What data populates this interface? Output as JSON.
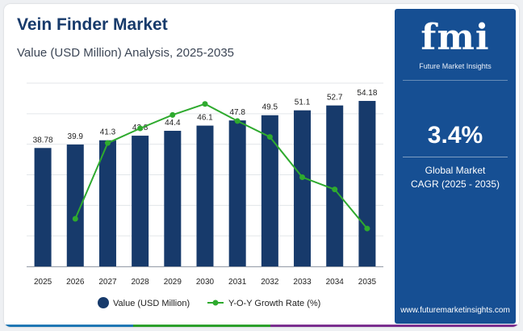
{
  "header": {
    "title": "Vein Finder Market",
    "subtitle": "Value (USD Million) Analysis, 2025-2035"
  },
  "sidebar": {
    "brand": "fmi",
    "brand_sub": "Future Market Insights",
    "cagr_value": "3.4%",
    "cagr_label_line1": "Global Market",
    "cagr_label_line2": "CAGR (2025 - 2035)",
    "website": "www.futuremarketinsights.com"
  },
  "colors": {
    "bar": "#173a6b",
    "line": "#2eaa2e",
    "sidebar": "#164f93",
    "strip": [
      "#1f77b4",
      "#2ca02c",
      "#7b2f8f"
    ]
  },
  "chart_data": {
    "type": "bar",
    "categories": [
      "2025",
      "2026",
      "2027",
      "2028",
      "2029",
      "2030",
      "2031",
      "2032",
      "2033",
      "2034",
      "2035"
    ],
    "series": [
      {
        "name": "Value (USD Million)",
        "type": "bar",
        "values": [
          38.78,
          39.9,
          41.3,
          42.8,
          44.4,
          46.1,
          47.8,
          49.5,
          51.1,
          52.7,
          54.18
        ],
        "labels": [
          "38.78",
          "39.9",
          "41.3",
          "42.8",
          "44.4",
          "46.1",
          "47.8",
          "49.5",
          "51.1",
          "52.7",
          "54.18"
        ]
      },
      {
        "name": "Y-O-Y Growth Rate (%)",
        "type": "line",
        "values": [
          null,
          2.89,
          3.51,
          3.63,
          3.74,
          3.83,
          3.69,
          3.56,
          3.23,
          3.13,
          2.81
        ]
      }
    ],
    "ylim": [
      0,
      60
    ],
    "y2lim": [
      2.5,
      4.0
    ],
    "grid": true,
    "legend_position": "bottom"
  }
}
